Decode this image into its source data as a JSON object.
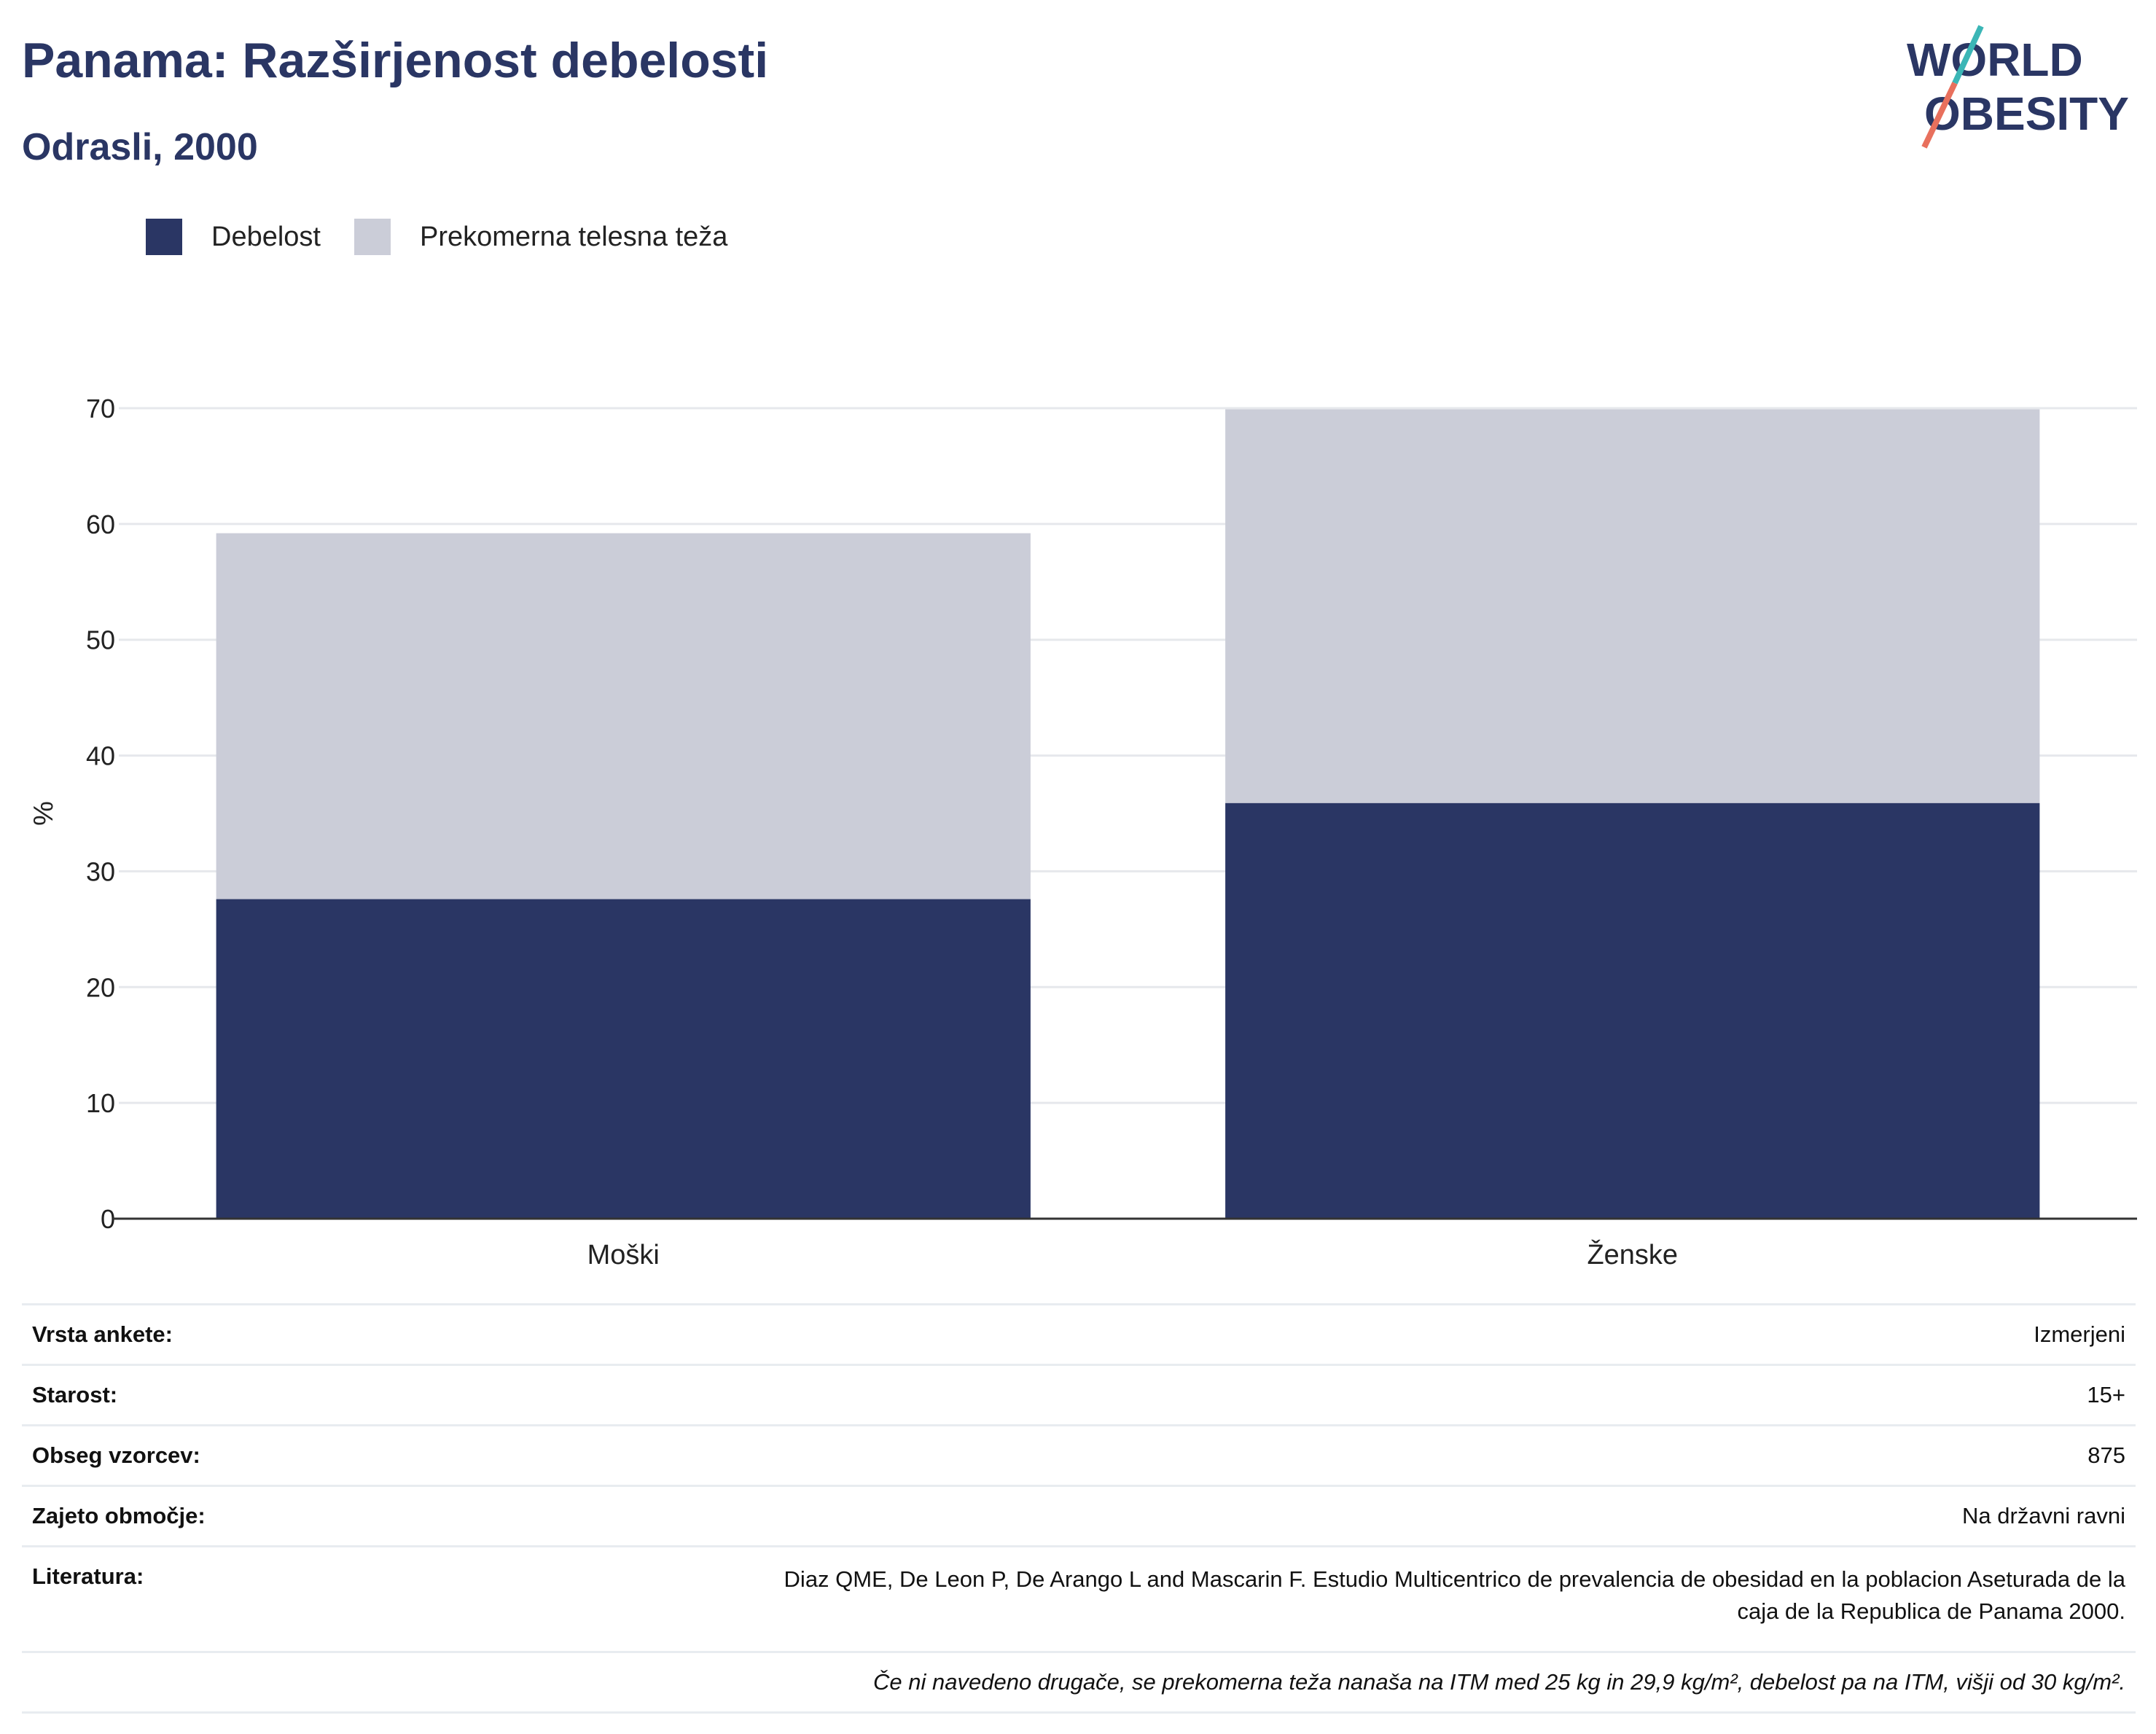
{
  "header": {
    "title": "Panama: Razširjenost debelosti",
    "subtitle": "Odrasli, 2000",
    "logo_line1": "WORLD",
    "logo_line2": "OBESITY"
  },
  "colors": {
    "obesity": "#2a3664",
    "overweight": "#cbcdd8",
    "title": "#2a3664",
    "logo_teal": "#3bb6b6",
    "logo_coral": "#e8705d"
  },
  "legend": [
    {
      "label": "Debelost",
      "color": "#2a3664"
    },
    {
      "label": "Prekomerna telesna teža",
      "color": "#cbcdd8"
    }
  ],
  "chart_data": {
    "type": "bar",
    "stacked": true,
    "categories": [
      "Moški",
      "Ženske"
    ],
    "series": [
      {
        "name": "Debelost",
        "values": [
          27.6,
          35.9
        ]
      },
      {
        "name": "Prekomerna telesna teža",
        "values": [
          31.6,
          34.0
        ]
      }
    ],
    "ylabel": "%",
    "ylim": [
      0,
      70
    ],
    "yticks": [
      0,
      10,
      20,
      30,
      40,
      50,
      60,
      70
    ],
    "grid": true,
    "legend_position": "top-left"
  },
  "info": {
    "rows": [
      {
        "label": "Vrsta ankete:",
        "value": "Izmerjeni"
      },
      {
        "label": "Starost:",
        "value": "15+"
      },
      {
        "label": "Obseg vzorcev:",
        "value": "875"
      },
      {
        "label": "Zajeto območje:",
        "value": "Na državni ravni"
      }
    ],
    "reference_label": "Literatura:",
    "reference_line1": "Diaz QME, De Leon P, De Arango L and Mascarin F. Estudio Multicentrico de prevalencia de obesidad en la poblacion Aseturada de la",
    "reference_line2": "caja de la Republica de Panama 2000.",
    "note": "Če ni navedeno drugače, se prekomerna teža nanaša na ITM med 25 kg in 29,9 kg/m², debelost pa na ITM, višji od 30 kg/m²."
  }
}
